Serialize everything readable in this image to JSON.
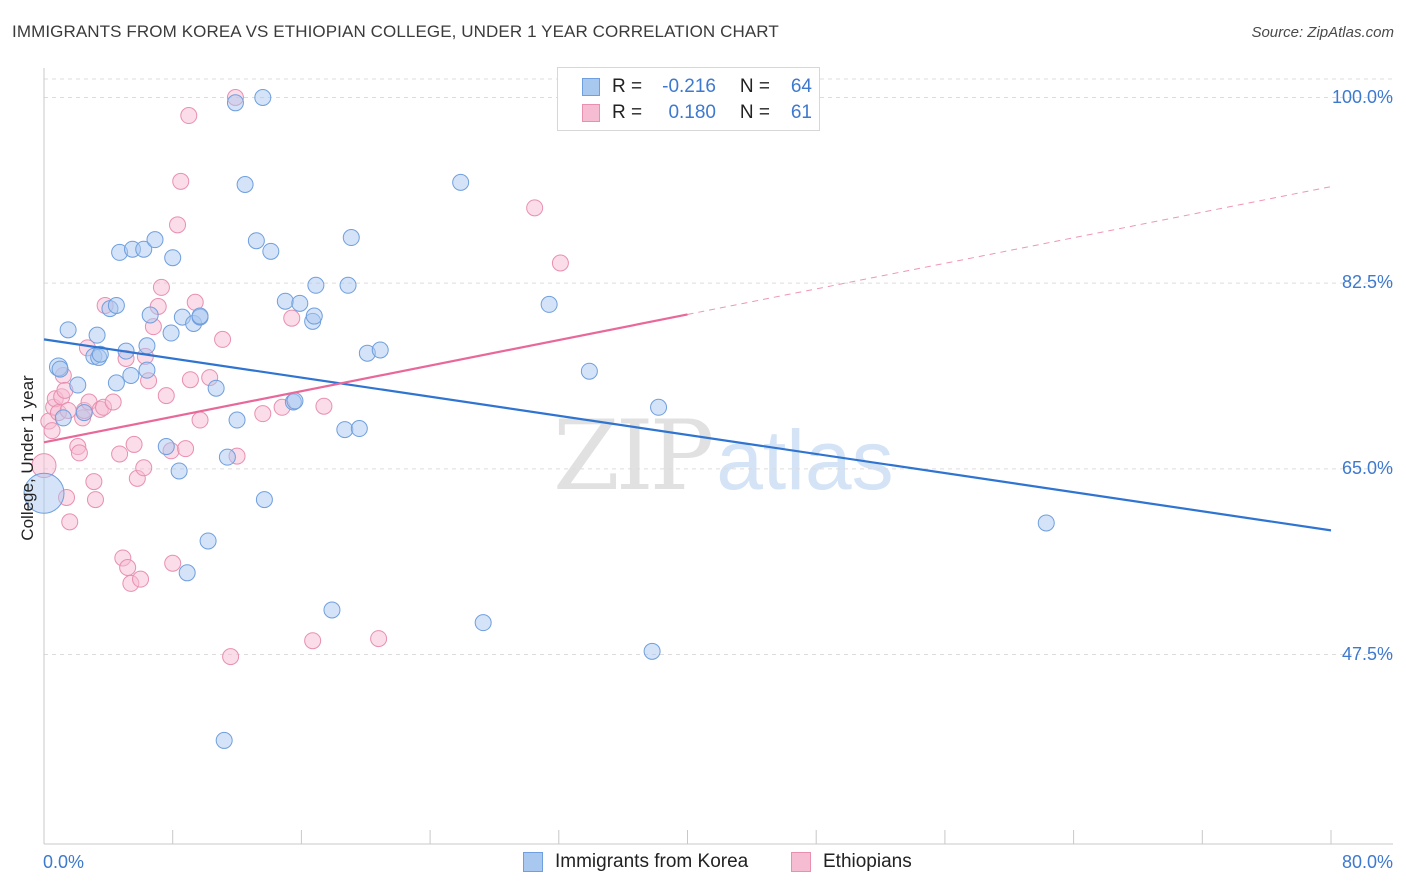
{
  "title": "IMMIGRANTS FROM KOREA VS ETHIOPIAN COLLEGE, UNDER 1 YEAR CORRELATION CHART",
  "source": "Source: ZipAtlas.com",
  "watermark": {
    "zip": "ZIP",
    "atlas": "atlas"
  },
  "colors": {
    "korea": "#a9c8f0",
    "korea_stroke": "#6f9fde",
    "korea_line": "#2f74d0",
    "ethiopia": "#f6bcd1",
    "ethiopia_stroke": "#e98fb0",
    "ethiopia_line": "#e8689a",
    "accent_text": "#3d79cf"
  },
  "legend": {
    "rows": [
      {
        "r_label": "R =",
        "r_value": "-0.216",
        "n_label": "N =",
        "n_value": "64"
      },
      {
        "r_label": "R =",
        "r_value": "0.180",
        "n_label": "N =",
        "n_value": "61"
      }
    ]
  },
  "chart_data": {
    "type": "scatter",
    "title": "IMMIGRANTS FROM KOREA VS ETHIOPIAN COLLEGE, UNDER 1 YEAR CORRELATION CHART",
    "xlabel": "",
    "ylabel": "College, Under 1 year",
    "xlim": [
      0,
      80
    ],
    "ylim": [
      32,
      102
    ],
    "x_tick_labels": [
      "0.0%",
      "80.0%"
    ],
    "y_ticks": [
      47.5,
      65.0,
      82.5,
      100.0
    ],
    "y_tick_labels": [
      "47.5%",
      "65.0%",
      "82.5%",
      "100.0%"
    ],
    "grid": true,
    "legend_position": "bottom",
    "series": [
      {
        "name": "Immigrants from Korea",
        "R": -0.216,
        "N": 64,
        "trend": {
          "x": [
            0,
            80
          ],
          "y": [
            77.2,
            59.2
          ],
          "style": "solid"
        },
        "points": [
          [
            0.0,
            62.7,
            20
          ],
          [
            0.9,
            74.6,
            9
          ],
          [
            1.0,
            74.4,
            8
          ],
          [
            1.5,
            78.1,
            8
          ],
          [
            2.1,
            72.9,
            8
          ],
          [
            2.5,
            70.3,
            8
          ],
          [
            3.1,
            75.6,
            8
          ],
          [
            3.3,
            77.6,
            8
          ],
          [
            3.4,
            75.5,
            8
          ],
          [
            3.5,
            75.8,
            8
          ],
          [
            4.1,
            80.1,
            8
          ],
          [
            4.5,
            73.1,
            8
          ],
          [
            4.5,
            80.4,
            8
          ],
          [
            4.7,
            85.4,
            8
          ],
          [
            5.1,
            76.1,
            8
          ],
          [
            5.4,
            73.8,
            8
          ],
          [
            5.5,
            85.7,
            8
          ],
          [
            6.2,
            85.7,
            8
          ],
          [
            6.4,
            74.3,
            8
          ],
          [
            6.4,
            76.6,
            8
          ],
          [
            6.6,
            79.5,
            8
          ],
          [
            6.9,
            86.6,
            8
          ],
          [
            7.6,
            67.1,
            8
          ],
          [
            7.9,
            77.8,
            8
          ],
          [
            8.0,
            84.9,
            8
          ],
          [
            8.4,
            64.8,
            8
          ],
          [
            8.6,
            79.3,
            8
          ],
          [
            8.9,
            55.2,
            8
          ],
          [
            9.3,
            78.7,
            8
          ],
          [
            9.7,
            79.3,
            8
          ],
          [
            9.7,
            79.4,
            8
          ],
          [
            10.2,
            58.2,
            8
          ],
          [
            10.7,
            72.6,
            8
          ],
          [
            11.4,
            66.1,
            8
          ],
          [
            11.9,
            99.5,
            8
          ],
          [
            12.0,
            69.6,
            8
          ],
          [
            12.5,
            91.8,
            8
          ],
          [
            13.2,
            86.5,
            8
          ],
          [
            13.6,
            100.0,
            8
          ],
          [
            13.7,
            62.1,
            8
          ],
          [
            14.1,
            85.5,
            8
          ],
          [
            15.0,
            80.8,
            8
          ],
          [
            15.5,
            71.3,
            8
          ],
          [
            15.6,
            71.4,
            8
          ],
          [
            15.9,
            80.6,
            8
          ],
          [
            16.7,
            78.9,
            8
          ],
          [
            16.8,
            79.4,
            8
          ],
          [
            16.9,
            82.3,
            8
          ],
          [
            17.9,
            51.7,
            8
          ],
          [
            18.7,
            68.7,
            8
          ],
          [
            18.9,
            82.3,
            8
          ],
          [
            19.1,
            86.8,
            8
          ],
          [
            19.6,
            68.8,
            8
          ],
          [
            20.1,
            75.9,
            8
          ],
          [
            20.9,
            76.2,
            8
          ],
          [
            25.9,
            92.0,
            8
          ],
          [
            27.3,
            50.5,
            8
          ],
          [
            31.4,
            80.5,
            8
          ],
          [
            33.9,
            74.2,
            8
          ],
          [
            37.8,
            47.8,
            8
          ],
          [
            38.2,
            70.8,
            8
          ],
          [
            62.3,
            59.9,
            8
          ],
          [
            11.2,
            39.4,
            8
          ],
          [
            1.2,
            69.8,
            8
          ]
        ]
      },
      {
        "name": "Ethiopians",
        "R": 0.18,
        "N": 61,
        "trend": {
          "x": [
            0,
            80
          ],
          "y": [
            67.5,
            91.6
          ],
          "solid_until_x": 40,
          "style": "solid-then-dashed"
        },
        "points": [
          [
            0.0,
            65.3,
            12
          ],
          [
            0.3,
            69.5,
            8
          ],
          [
            0.5,
            68.6,
            8
          ],
          [
            0.6,
            70.8,
            8
          ],
          [
            0.7,
            71.6,
            8
          ],
          [
            0.9,
            70.3,
            8
          ],
          [
            1.1,
            71.8,
            8
          ],
          [
            1.2,
            73.8,
            8
          ],
          [
            1.3,
            72.4,
            8
          ],
          [
            1.4,
            62.3,
            8
          ],
          [
            1.5,
            70.5,
            8
          ],
          [
            1.6,
            60.0,
            8
          ],
          [
            2.1,
            67.1,
            8
          ],
          [
            2.2,
            66.5,
            8
          ],
          [
            2.4,
            69.8,
            8
          ],
          [
            2.5,
            70.5,
            8
          ],
          [
            2.7,
            76.4,
            8
          ],
          [
            2.8,
            71.3,
            8
          ],
          [
            3.1,
            63.8,
            8
          ],
          [
            3.2,
            62.1,
            8
          ],
          [
            3.5,
            70.6,
            8
          ],
          [
            3.7,
            70.8,
            8
          ],
          [
            4.3,
            71.3,
            8
          ],
          [
            4.7,
            66.4,
            8
          ],
          [
            4.9,
            56.6,
            8
          ],
          [
            5.1,
            75.4,
            8
          ],
          [
            5.2,
            55.7,
            8
          ],
          [
            5.4,
            54.2,
            8
          ],
          [
            5.6,
            67.3,
            8
          ],
          [
            5.8,
            64.1,
            8
          ],
          [
            6.0,
            54.6,
            8
          ],
          [
            6.2,
            65.1,
            8
          ],
          [
            6.3,
            75.6,
            8
          ],
          [
            6.5,
            73.3,
            8
          ],
          [
            6.8,
            78.4,
            8
          ],
          [
            7.1,
            80.3,
            8
          ],
          [
            7.3,
            82.1,
            8
          ],
          [
            7.6,
            71.9,
            8
          ],
          [
            7.9,
            66.7,
            8
          ],
          [
            8.0,
            56.1,
            8
          ],
          [
            8.3,
            88.0,
            8
          ],
          [
            8.5,
            92.1,
            8
          ],
          [
            8.8,
            66.9,
            8
          ],
          [
            9.1,
            73.4,
            8
          ],
          [
            9.4,
            80.7,
            8
          ],
          [
            9.7,
            69.6,
            8
          ],
          [
            10.3,
            73.6,
            8
          ],
          [
            11.1,
            77.2,
            8
          ],
          [
            11.6,
            47.3,
            8
          ],
          [
            12.0,
            66.2,
            8
          ],
          [
            13.6,
            70.2,
            8
          ],
          [
            14.8,
            70.8,
            8
          ],
          [
            15.4,
            79.2,
            8
          ],
          [
            16.7,
            48.8,
            8
          ],
          [
            17.4,
            70.9,
            8
          ],
          [
            20.8,
            49.0,
            8
          ],
          [
            30.5,
            89.6,
            8
          ],
          [
            32.1,
            84.4,
            8
          ],
          [
            11.9,
            100.0,
            8
          ],
          [
            9.0,
            98.3,
            8
          ],
          [
            3.8,
            80.4,
            8
          ]
        ]
      }
    ]
  }
}
